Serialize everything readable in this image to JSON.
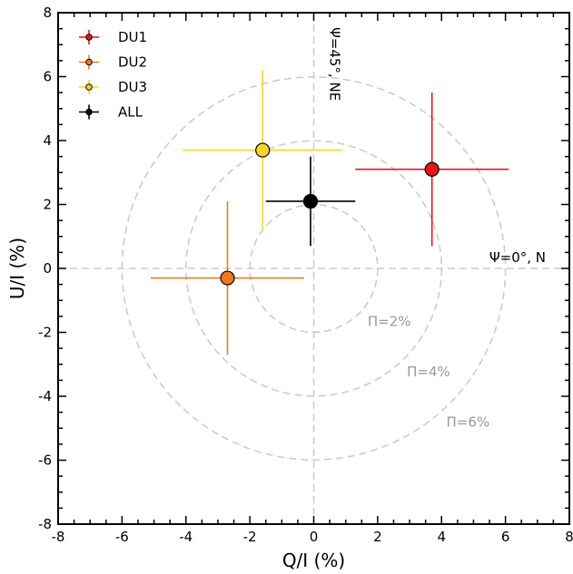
{
  "chart_data": {
    "type": "scatter",
    "xlabel": "Q/I (%)",
    "ylabel": "U/I (%)",
    "xlim": [
      -8,
      8
    ],
    "ylim": [
      -8,
      8
    ],
    "xticks": [
      "-8",
      "-6",
      "-4",
      "-2",
      "0",
      "2",
      "4",
      "6",
      "8"
    ],
    "yticks": [
      "-8",
      "-6",
      "-4",
      "-2",
      "0",
      "2",
      "4",
      "6",
      "8"
    ],
    "grid": false,
    "legend_position": "top-left",
    "series": [
      {
        "name": "DU1",
        "color": "#e8141b",
        "x": 3.7,
        "y": 3.1,
        "x_err": [
          2.4,
          2.4
        ],
        "y_err": [
          2.4,
          2.4
        ]
      },
      {
        "name": "DU2",
        "color": "#ee7a1f",
        "x": -2.7,
        "y": -0.3,
        "x_err": [
          2.4,
          2.4
        ],
        "y_err": [
          2.4,
          2.4
        ]
      },
      {
        "name": "DU3",
        "color": "#f6d52a",
        "x": -1.6,
        "y": 3.7,
        "x_err": [
          2.5,
          2.5
        ],
        "y_err": [
          2.5,
          2.5
        ]
      },
      {
        "name": "ALL",
        "color": "#000000",
        "x": -0.1,
        "y": 2.1,
        "x_err": [
          1.4,
          1.4
        ],
        "y_err": [
          1.4,
          1.4
        ]
      }
    ],
    "circles": [
      {
        "radius": 2,
        "label": "Π=2%"
      },
      {
        "radius": 4,
        "label": "Π=4%"
      },
      {
        "radius": 6,
        "label": "Π=6%"
      }
    ],
    "annotations": {
      "horizontal_axis_label": "Ψ=0°, N",
      "vertical_axis_label": "Ψ=45°, NE"
    },
    "colors": {
      "guide": "#cccccc",
      "ring_label": "#999999"
    }
  }
}
